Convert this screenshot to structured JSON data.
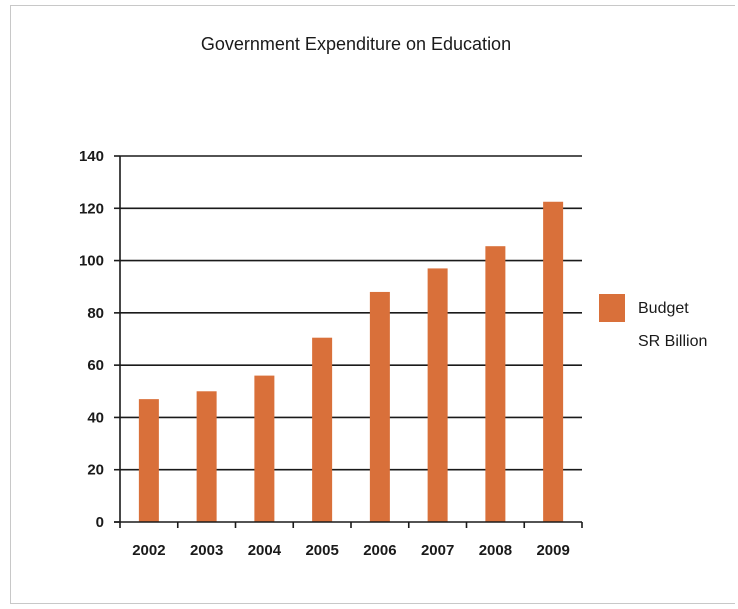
{
  "chart_data": {
    "type": "bar",
    "title": "Government Expenditure on Education",
    "xlabel": "",
    "ylabel": "",
    "categories": [
      "2002",
      "2003",
      "2004",
      "2005",
      "2006",
      "2007",
      "2008",
      "2009"
    ],
    "series": [
      {
        "name": "Budget SR Billion",
        "legend_lines": [
          "Budget",
          "SR Billion"
        ],
        "color": "#d9703a",
        "values": [
          47,
          50,
          56,
          70.5,
          88,
          97,
          105.5,
          122.5
        ]
      }
    ],
    "ylim": [
      0,
      140
    ],
    "yticks": [
      0,
      20,
      40,
      60,
      80,
      100,
      120,
      140
    ],
    "grid": true,
    "legend_position": "right"
  }
}
